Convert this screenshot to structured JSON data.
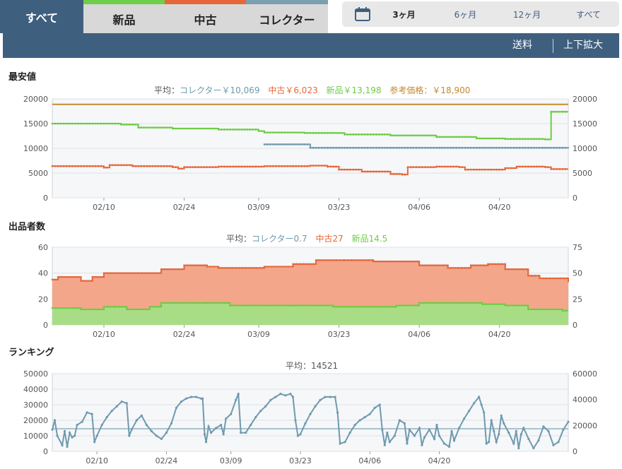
{
  "tabs": [
    {
      "label": "すべて",
      "active": true
    },
    {
      "label": "新品"
    },
    {
      "label": "中古"
    },
    {
      "label": "コレクター"
    }
  ],
  "ranges": [
    {
      "label": "3ヶ月",
      "active": true
    },
    {
      "label": "6ヶ月"
    },
    {
      "label": "12ヶ月"
    },
    {
      "label": "すべて"
    }
  ],
  "toolbar": {
    "shipping": "送料",
    "zoom": "上下拡大"
  },
  "colors": {
    "collector": "#6f9aae",
    "used": "#e8673a",
    "new": "#6ccc44",
    "reference": "#c58a2e"
  },
  "x_ticks": [
    "02/10",
    "02/24",
    "03/09",
    "03/23",
    "04/06",
    "04/20"
  ],
  "x_tick_days": [
    10,
    24,
    37,
    51,
    65,
    79
  ],
  "charts": {
    "price": {
      "title": "最安値",
      "legend": {
        "avg_label": "平均：",
        "collector": "コレクター￥10,069",
        "used": "中古￥6,023",
        "new": "新品￥13,198",
        "reference": "参考価格：￥18,900"
      }
    },
    "sellers": {
      "title": "出品者数",
      "legend": {
        "avg_label": "平均：",
        "collector": "コレクター0.7",
        "used": "中古27",
        "new": "新品14.5"
      }
    },
    "ranking": {
      "title": "ランキング",
      "legend": {
        "avg": "平均：14521"
      }
    }
  },
  "chart_data": [
    {
      "type": "line",
      "title": "最安値",
      "x_unit": "day",
      "ylim": [
        0,
        20000
      ],
      "yticks_left": [
        0,
        5000,
        10000,
        15000,
        20000
      ],
      "yticks_right": [
        0,
        5000,
        10000,
        15000,
        20000
      ],
      "series": [
        {
          "name": "参考価格",
          "points": [
            [
              1,
              18900
            ],
            [
              91,
              18900
            ]
          ]
        },
        {
          "name": "新品",
          "points": [
            [
              1,
              15000
            ],
            [
              8,
              15000
            ],
            [
              13,
              14800
            ],
            [
              16,
              14200
            ],
            [
              22,
              14000
            ],
            [
              30,
              13800
            ],
            [
              37,
              13500
            ],
            [
              38,
              13200
            ],
            [
              45,
              13100
            ],
            [
              52,
              12800
            ],
            [
              60,
              12600
            ],
            [
              68,
              12300
            ],
            [
              75,
              12000
            ],
            [
              80,
              11900
            ],
            [
              87,
              11800
            ],
            [
              88,
              17400
            ],
            [
              91,
              17400
            ]
          ]
        },
        {
          "name": "中古",
          "points": [
            [
              1,
              6400
            ],
            [
              9,
              6400
            ],
            [
              10,
              6100
            ],
            [
              11,
              6600
            ],
            [
              15,
              6400
            ],
            [
              22,
              6200
            ],
            [
              23,
              5900
            ],
            [
              24,
              6200
            ],
            [
              30,
              6300
            ],
            [
              38,
              6400
            ],
            [
              46,
              6500
            ],
            [
              49,
              6300
            ],
            [
              51,
              5700
            ],
            [
              55,
              5300
            ],
            [
              60,
              4800
            ],
            [
              62,
              4700
            ],
            [
              63,
              6200
            ],
            [
              68,
              6300
            ],
            [
              72,
              6200
            ],
            [
              73,
              5700
            ],
            [
              79,
              5700
            ],
            [
              80,
              6000
            ],
            [
              82,
              6300
            ],
            [
              87,
              6200
            ],
            [
              88,
              5800
            ],
            [
              91,
              5800
            ]
          ]
        },
        {
          "name": "コレクター",
          "points": [
            [
              38,
              10800
            ],
            [
              45,
              10800
            ],
            [
              46,
              10100
            ],
            [
              91,
              10000
            ]
          ]
        }
      ]
    },
    {
      "type": "area",
      "title": "出品者数",
      "x_unit": "day",
      "ylim": [
        0,
        60
      ],
      "yticks_left": [
        0,
        20,
        40,
        60
      ],
      "yticks_right": [
        0,
        25,
        50,
        75
      ],
      "series": [
        {
          "name": "新品",
          "stack": "base",
          "points": [
            [
              1,
              13
            ],
            [
              5,
              13
            ],
            [
              6,
              12
            ],
            [
              10,
              14
            ],
            [
              12,
              14
            ],
            [
              14,
              12
            ],
            [
              18,
              14
            ],
            [
              20,
              17
            ],
            [
              28,
              17
            ],
            [
              32,
              15
            ],
            [
              47,
              15
            ],
            [
              50,
              14
            ],
            [
              60,
              14
            ],
            [
              61,
              15
            ],
            [
              65,
              17
            ],
            [
              76,
              16
            ],
            [
              80,
              15
            ],
            [
              84,
              12
            ],
            [
              90,
              11
            ],
            [
              91,
              11
            ]
          ]
        },
        {
          "name": "中古",
          "stack": "top",
          "points": [
            [
              1,
              35
            ],
            [
              2,
              37
            ],
            [
              5,
              37
            ],
            [
              6,
              34
            ],
            [
              8,
              37
            ],
            [
              10,
              40
            ],
            [
              16,
              40
            ],
            [
              20,
              43
            ],
            [
              24,
              46
            ],
            [
              28,
              45
            ],
            [
              30,
              44
            ],
            [
              36,
              44
            ],
            [
              38,
              45
            ],
            [
              43,
              47
            ],
            [
              47,
              50
            ],
            [
              52,
              50
            ],
            [
              57,
              49
            ],
            [
              63,
              49
            ],
            [
              65,
              46
            ],
            [
              70,
              44
            ],
            [
              74,
              46
            ],
            [
              77,
              47
            ],
            [
              80,
              43
            ],
            [
              84,
              38
            ],
            [
              86,
              36
            ],
            [
              91,
              33
            ]
          ]
        }
      ]
    },
    {
      "type": "line",
      "title": "ランキング",
      "x_unit": "day",
      "ylim": [
        0,
        50000
      ],
      "yticks_left": [
        0,
        10000,
        20000,
        30000,
        40000,
        50000
      ],
      "yticks_right": [
        0,
        20000,
        40000,
        60000
      ],
      "average": 14521,
      "series": [
        {
          "name": "ランキング",
          "points": [
            [
              1,
              14000
            ],
            [
              1.5,
              20000
            ],
            [
              2,
              10000
            ],
            [
              3,
              4000
            ],
            [
              3.5,
              13000
            ],
            [
              4,
              3000
            ],
            [
              4.5,
              12000
            ],
            [
              5,
              9000
            ],
            [
              5.5,
              10000
            ],
            [
              6,
              17000
            ],
            [
              7,
              19000
            ],
            [
              8,
              25000
            ],
            [
              9,
              24000
            ],
            [
              9.5,
              6000
            ],
            [
              10,
              10000
            ],
            [
              11,
              17000
            ],
            [
              12,
              22000
            ],
            [
              13,
              26000
            ],
            [
              14,
              29000
            ],
            [
              15,
              32000
            ],
            [
              16,
              31000
            ],
            [
              16.5,
              10000
            ],
            [
              17,
              14000
            ],
            [
              18,
              20000
            ],
            [
              19,
              23000
            ],
            [
              20,
              17000
            ],
            [
              21,
              13000
            ],
            [
              22,
              10000
            ],
            [
              23,
              8000
            ],
            [
              24,
              12000
            ],
            [
              25,
              18000
            ],
            [
              26,
              28000
            ],
            [
              27,
              32000
            ],
            [
              28,
              34000
            ],
            [
              29,
              35000
            ],
            [
              30,
              35000
            ],
            [
              31,
              34000
            ],
            [
              31.3,
              34000
            ],
            [
              31.7,
              11000
            ],
            [
              32,
              6000
            ],
            [
              32.5,
              16000
            ],
            [
              33,
              12000
            ],
            [
              34,
              15000
            ],
            [
              35,
              17000
            ],
            [
              35.5,
              11000
            ],
            [
              36,
              21000
            ],
            [
              37,
              24000
            ],
            [
              38,
              33000
            ],
            [
              38.5,
              37000
            ],
            [
              39,
              12000
            ],
            [
              40,
              12000
            ],
            [
              41,
              17000
            ],
            [
              42,
              22000
            ],
            [
              43,
              26000
            ],
            [
              44,
              29000
            ],
            [
              45,
              33000
            ],
            [
              46,
              35000
            ],
            [
              47,
              37000
            ],
            [
              48,
              36000
            ],
            [
              49,
              37000
            ],
            [
              49.5,
              35000
            ],
            [
              50,
              20000
            ],
            [
              50.5,
              10000
            ],
            [
              51,
              11000
            ],
            [
              52,
              18000
            ],
            [
              53,
              24000
            ],
            [
              54,
              29000
            ],
            [
              55,
              33000
            ],
            [
              56,
              35000
            ],
            [
              57,
              35000
            ],
            [
              58,
              35000
            ],
            [
              58.5,
              25000
            ],
            [
              59,
              5000
            ],
            [
              60,
              6000
            ],
            [
              61,
              12000
            ],
            [
              62,
              17000
            ],
            [
              63,
              20000
            ],
            [
              64,
              22000
            ],
            [
              65,
              24000
            ],
            [
              66,
              28000
            ],
            [
              67,
              30000
            ],
            [
              67.5,
              14000
            ],
            [
              68,
              4000
            ],
            [
              68.5,
              12000
            ],
            [
              69,
              6000
            ],
            [
              70,
              10000
            ],
            [
              71,
              20000
            ],
            [
              72,
              18000
            ],
            [
              72.5,
              5000
            ],
            [
              73,
              14000
            ],
            [
              74,
              10000
            ],
            [
              75,
              15000
            ],
            [
              75.5,
              4000
            ],
            [
              76,
              9000
            ],
            [
              77,
              14000
            ],
            [
              78,
              8000
            ],
            [
              78.5,
              17000
            ],
            [
              79,
              10000
            ],
            [
              80,
              5000
            ],
            [
              81,
              3000
            ],
            [
              81.5,
              13000
            ],
            [
              82,
              7000
            ],
            [
              83,
              15000
            ],
            [
              84,
              21000
            ],
            [
              85,
              26000
            ],
            [
              86,
              31000
            ],
            [
              87,
              35000
            ],
            [
              87.5,
              30000
            ],
            [
              88,
              25000
            ],
            [
              88.5,
              5000
            ],
            [
              89,
              6000
            ],
            [
              89.5,
              20000
            ],
            [
              90,
              13000
            ],
            [
              90.5,
              6000
            ],
            [
              91,
              11000
            ],
            [
              91.5,
              23000
            ],
            [
              92,
              18000
            ],
            [
              93,
              12000
            ],
            [
              94,
              5000
            ],
            [
              94.5,
              13000
            ],
            [
              95,
              2000
            ],
            [
              95.5,
              11000
            ],
            [
              96,
              15000
            ],
            [
              97,
              8000
            ],
            [
              98,
              2000
            ],
            [
              99,
              7000
            ],
            [
              100,
              16000
            ],
            [
              101,
              13000
            ],
            [
              102,
              4000
            ],
            [
              103,
              6000
            ],
            [
              104,
              14000
            ],
            [
              105,
              19000
            ]
          ]
        }
      ]
    }
  ]
}
